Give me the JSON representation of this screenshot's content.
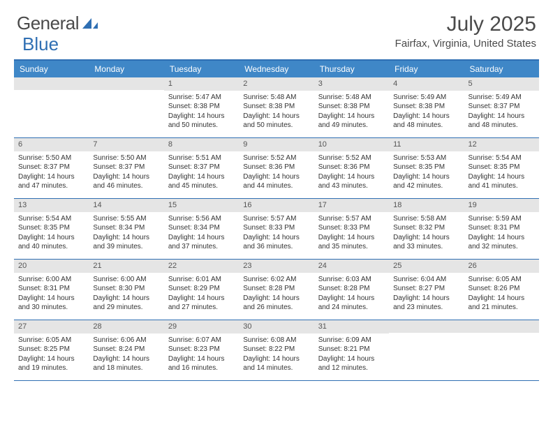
{
  "logo": {
    "text1": "General",
    "text2": "Blue"
  },
  "title": "July 2025",
  "location": "Fairfax, Virginia, United States",
  "header_color": "#3f87c7",
  "border_color": "#2f6fb3",
  "daynum_bg": "#e5e5e5",
  "days_of_week": [
    "Sunday",
    "Monday",
    "Tuesday",
    "Wednesday",
    "Thursday",
    "Friday",
    "Saturday"
  ],
  "weeks": [
    [
      null,
      null,
      {
        "n": "1",
        "sr": "5:47 AM",
        "ss": "8:38 PM",
        "dl": "14 hours and 50 minutes."
      },
      {
        "n": "2",
        "sr": "5:48 AM",
        "ss": "8:38 PM",
        "dl": "14 hours and 50 minutes."
      },
      {
        "n": "3",
        "sr": "5:48 AM",
        "ss": "8:38 PM",
        "dl": "14 hours and 49 minutes."
      },
      {
        "n": "4",
        "sr": "5:49 AM",
        "ss": "8:38 PM",
        "dl": "14 hours and 48 minutes."
      },
      {
        "n": "5",
        "sr": "5:49 AM",
        "ss": "8:37 PM",
        "dl": "14 hours and 48 minutes."
      }
    ],
    [
      {
        "n": "6",
        "sr": "5:50 AM",
        "ss": "8:37 PM",
        "dl": "14 hours and 47 minutes."
      },
      {
        "n": "7",
        "sr": "5:50 AM",
        "ss": "8:37 PM",
        "dl": "14 hours and 46 minutes."
      },
      {
        "n": "8",
        "sr": "5:51 AM",
        "ss": "8:37 PM",
        "dl": "14 hours and 45 minutes."
      },
      {
        "n": "9",
        "sr": "5:52 AM",
        "ss": "8:36 PM",
        "dl": "14 hours and 44 minutes."
      },
      {
        "n": "10",
        "sr": "5:52 AM",
        "ss": "8:36 PM",
        "dl": "14 hours and 43 minutes."
      },
      {
        "n": "11",
        "sr": "5:53 AM",
        "ss": "8:35 PM",
        "dl": "14 hours and 42 minutes."
      },
      {
        "n": "12",
        "sr": "5:54 AM",
        "ss": "8:35 PM",
        "dl": "14 hours and 41 minutes."
      }
    ],
    [
      {
        "n": "13",
        "sr": "5:54 AM",
        "ss": "8:35 PM",
        "dl": "14 hours and 40 minutes."
      },
      {
        "n": "14",
        "sr": "5:55 AM",
        "ss": "8:34 PM",
        "dl": "14 hours and 39 minutes."
      },
      {
        "n": "15",
        "sr": "5:56 AM",
        "ss": "8:34 PM",
        "dl": "14 hours and 37 minutes."
      },
      {
        "n": "16",
        "sr": "5:57 AM",
        "ss": "8:33 PM",
        "dl": "14 hours and 36 minutes."
      },
      {
        "n": "17",
        "sr": "5:57 AM",
        "ss": "8:33 PM",
        "dl": "14 hours and 35 minutes."
      },
      {
        "n": "18",
        "sr": "5:58 AM",
        "ss": "8:32 PM",
        "dl": "14 hours and 33 minutes."
      },
      {
        "n": "19",
        "sr": "5:59 AM",
        "ss": "8:31 PM",
        "dl": "14 hours and 32 minutes."
      }
    ],
    [
      {
        "n": "20",
        "sr": "6:00 AM",
        "ss": "8:31 PM",
        "dl": "14 hours and 30 minutes."
      },
      {
        "n": "21",
        "sr": "6:00 AM",
        "ss": "8:30 PM",
        "dl": "14 hours and 29 minutes."
      },
      {
        "n": "22",
        "sr": "6:01 AM",
        "ss": "8:29 PM",
        "dl": "14 hours and 27 minutes."
      },
      {
        "n": "23",
        "sr": "6:02 AM",
        "ss": "8:28 PM",
        "dl": "14 hours and 26 minutes."
      },
      {
        "n": "24",
        "sr": "6:03 AM",
        "ss": "8:28 PM",
        "dl": "14 hours and 24 minutes."
      },
      {
        "n": "25",
        "sr": "6:04 AM",
        "ss": "8:27 PM",
        "dl": "14 hours and 23 minutes."
      },
      {
        "n": "26",
        "sr": "6:05 AM",
        "ss": "8:26 PM",
        "dl": "14 hours and 21 minutes."
      }
    ],
    [
      {
        "n": "27",
        "sr": "6:05 AM",
        "ss": "8:25 PM",
        "dl": "14 hours and 19 minutes."
      },
      {
        "n": "28",
        "sr": "6:06 AM",
        "ss": "8:24 PM",
        "dl": "14 hours and 18 minutes."
      },
      {
        "n": "29",
        "sr": "6:07 AM",
        "ss": "8:23 PM",
        "dl": "14 hours and 16 minutes."
      },
      {
        "n": "30",
        "sr": "6:08 AM",
        "ss": "8:22 PM",
        "dl": "14 hours and 14 minutes."
      },
      {
        "n": "31",
        "sr": "6:09 AM",
        "ss": "8:21 PM",
        "dl": "14 hours and 12 minutes."
      },
      null,
      null
    ]
  ],
  "labels": {
    "sunrise": "Sunrise:",
    "sunset": "Sunset:",
    "daylight": "Daylight:"
  }
}
